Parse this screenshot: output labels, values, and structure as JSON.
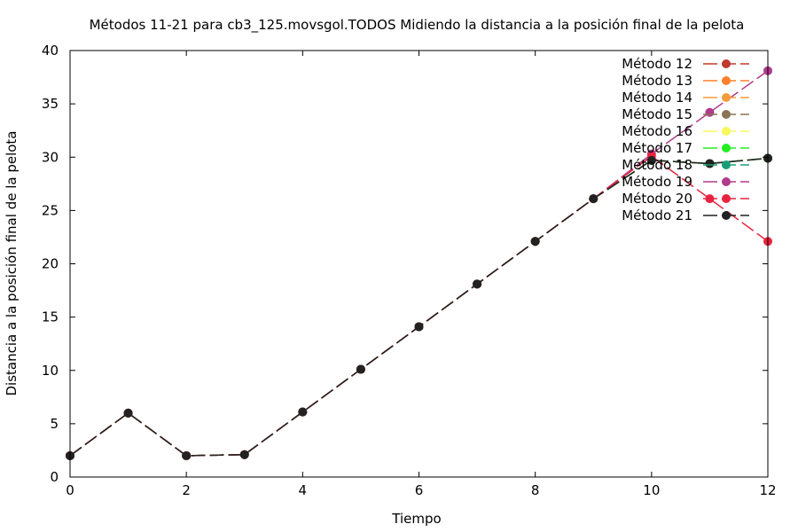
{
  "chart_data": {
    "type": "line",
    "title": "Métodos 11-21 para cb3_125.movsgol.TODOS Midiendo la distancia a la posición final de la pelota",
    "xlabel": "Tiempo",
    "ylabel": "Distancia a la posición final de la pelota",
    "xlim": [
      0,
      12
    ],
    "ylim": [
      0,
      40
    ],
    "xticks": [
      0,
      2,
      4,
      6,
      8,
      10,
      12
    ],
    "yticks": [
      0,
      5,
      10,
      15,
      20,
      25,
      30,
      35,
      40
    ],
    "grid": false,
    "legend_position": "top-right",
    "x": [
      0,
      1,
      2,
      3,
      4,
      5,
      6,
      7,
      8,
      9,
      10,
      11,
      12
    ],
    "series": [
      {
        "name": "Método 12",
        "color": "#c0392b",
        "values": [
          2,
          6,
          2,
          2.1,
          6.1,
          10.1,
          14.1,
          18.1,
          22.1,
          26.1,
          29.7,
          29.4,
          29.9
        ]
      },
      {
        "name": "Método 13",
        "color": "#ff7f2a",
        "values": [
          2,
          6,
          2,
          2.1,
          6.1,
          10.1,
          14.1,
          18.1,
          22.1,
          26.1,
          29.7,
          29.4,
          29.9
        ]
      },
      {
        "name": "Método 14",
        "color": "#f39c3c",
        "values": [
          2,
          6,
          2,
          2.1,
          6.1,
          10.1,
          14.1,
          18.1,
          22.1,
          26.1,
          29.7,
          29.4,
          29.9
        ]
      },
      {
        "name": "Método 15",
        "color": "#8b7355",
        "values": [
          2,
          6,
          2,
          2.1,
          6.1,
          10.1,
          14.1,
          18.1,
          22.1,
          26.1,
          29.7,
          29.4,
          29.9
        ]
      },
      {
        "name": "Método 16",
        "color": "#f7f75e",
        "values": [
          2,
          6,
          2,
          2.1,
          6.1,
          10.1,
          14.1,
          18.1,
          22.1,
          26.1,
          29.7,
          29.4,
          29.9
        ]
      },
      {
        "name": "Método 17",
        "color": "#22ee22",
        "values": [
          2,
          6,
          2,
          2.1,
          6.1,
          10.1,
          14.1,
          18.1,
          22.1,
          26.1,
          29.7,
          29.4,
          29.9
        ]
      },
      {
        "name": "Método 18",
        "color": "#1a9e78",
        "values": [
          2,
          6,
          2,
          2.1,
          6.1,
          10.1,
          14.1,
          18.1,
          22.1,
          26.1,
          29.7,
          29.4,
          29.9
        ]
      },
      {
        "name": "Método 19",
        "color": "#b03a8c",
        "values": [
          2,
          6,
          2,
          2.1,
          6.1,
          10.1,
          14.1,
          18.1,
          22.1,
          26.1,
          30.3,
          34.2,
          38.1
        ]
      },
      {
        "name": "Método 20",
        "color": "#e8233f",
        "values": [
          2,
          6,
          2,
          2.1,
          6.1,
          10.1,
          14.1,
          18.1,
          22.1,
          26.1,
          30.1,
          26.1,
          22.1
        ]
      },
      {
        "name": "Método 21",
        "color": "#222222",
        "values": [
          2,
          6,
          2,
          2.1,
          6.1,
          10.1,
          14.1,
          18.1,
          22.1,
          26.1,
          29.7,
          29.4,
          29.9
        ]
      }
    ]
  }
}
